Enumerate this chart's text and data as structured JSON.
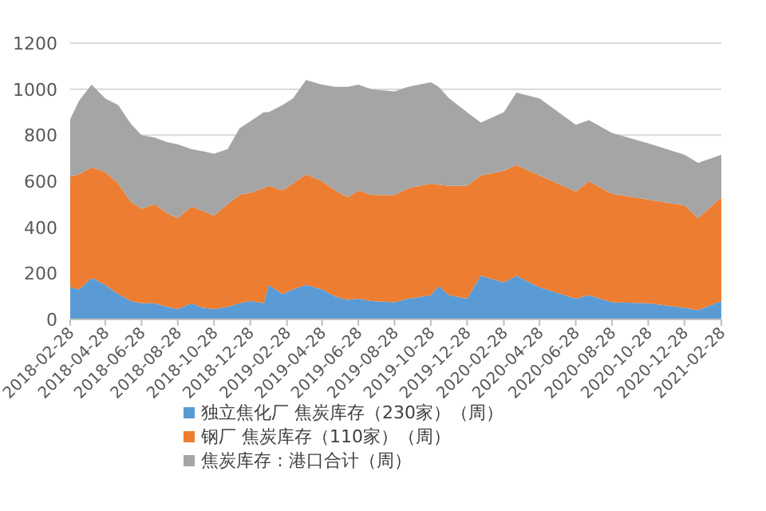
{
  "chart_data": {
    "type": "area",
    "stacked": true,
    "x": [
      "2018-02-28",
      "2018-03-15",
      "2018-04-05",
      "2018-04-28",
      "2018-05-20",
      "2018-06-10",
      "2018-06-28",
      "2018-07-20",
      "2018-08-10",
      "2018-08-28",
      "2018-09-20",
      "2018-10-10",
      "2018-10-28",
      "2018-11-20",
      "2018-12-10",
      "2018-12-28",
      "2019-01-20",
      "2019-01-28",
      "2019-02-20",
      "2019-03-10",
      "2019-04-01",
      "2019-04-28",
      "2019-05-20",
      "2019-06-10",
      "2019-06-28",
      "2019-07-20",
      "2019-08-28",
      "2019-09-20",
      "2019-10-28",
      "2019-11-10",
      "2019-11-28",
      "2019-12-28",
      "2020-01-20",
      "2020-02-28",
      "2020-03-20",
      "2020-04-28",
      "2020-06-28",
      "2020-07-20",
      "2020-08-28",
      "2020-10-28",
      "2020-12-28",
      "2021-01-20",
      "2021-02-28"
    ],
    "series": [
      {
        "name": "独立焦化厂 焦炭库存（230家）（周）",
        "color": "#5b9bd5",
        "values": [
          140,
          130,
          180,
          150,
          110,
          80,
          70,
          70,
          55,
          45,
          70,
          50,
          45,
          55,
          70,
          80,
          70,
          150,
          110,
          130,
          150,
          130,
          100,
          85,
          90,
          80,
          75,
          90,
          105,
          145,
          105,
          90,
          190,
          160,
          190,
          140,
          90,
          105,
          75,
          70,
          50,
          40,
          80
        ]
      },
      {
        "name": "钢厂 焦炭库存（110家）（周）",
        "color": "#ed7d31",
        "values": [
          480,
          500,
          480,
          490,
          480,
          430,
          410,
          430,
          405,
          395,
          420,
          420,
          405,
          445,
          470,
          470,
          500,
          430,
          450,
          460,
          480,
          470,
          460,
          445,
          470,
          460,
          465,
          480,
          485,
          440,
          475,
          490,
          435,
          485,
          480,
          485,
          465,
          495,
          470,
          450,
          445,
          400,
          450
        ]
      },
      {
        "name": "焦炭库存：港口合计（周）",
        "color": "#a5a5a5",
        "values": [
          250,
          320,
          360,
          320,
          340,
          340,
          320,
          290,
          310,
          320,
          250,
          260,
          270,
          240,
          290,
          310,
          330,
          320,
          370,
          370,
          410,
          420,
          450,
          480,
          460,
          460,
          450,
          440,
          440,
          425,
          380,
          320,
          230,
          255,
          315,
          335,
          290,
          265,
          265,
          245,
          220,
          240,
          185
        ]
      }
    ],
    "xlim": [
      "2018-02-28",
      "2021-02-28"
    ],
    "xticks": [
      "2018-02-28",
      "2018-04-28",
      "2018-06-28",
      "2018-08-28",
      "2018-10-28",
      "2018-12-28",
      "2019-02-28",
      "2019-04-28",
      "2019-06-28",
      "2019-08-28",
      "2019-10-28",
      "2019-12-28",
      "2020-02-28",
      "2020-04-28",
      "2020-06-28",
      "2020-08-28",
      "2020-10-28",
      "2020-12-28",
      "2021-02-28"
    ],
    "ylim": [
      0,
      1200
    ],
    "yticks": [
      0,
      200,
      400,
      600,
      800,
      1000,
      1200
    ],
    "grid": "y",
    "legend": "bottom"
  }
}
